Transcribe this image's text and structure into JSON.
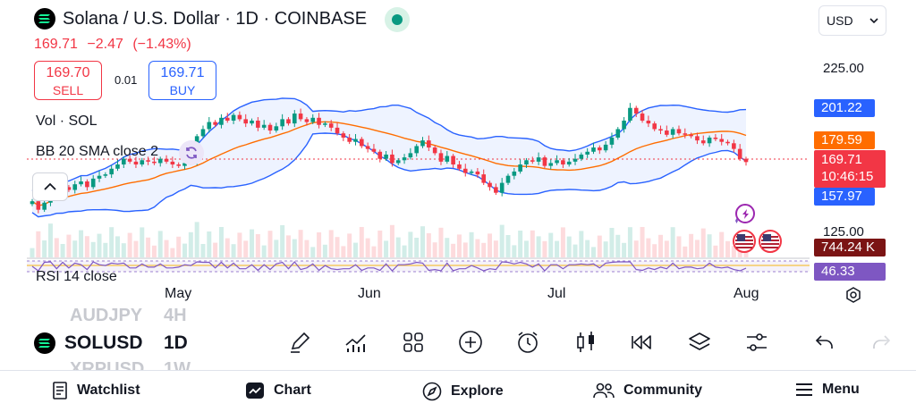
{
  "header": {
    "title": "Solana / U.S. Dollar · 1D · COINBASE",
    "price": "169.71",
    "change": "−2.47",
    "change_pct": "(−1.43%)"
  },
  "trade": {
    "sell_value": "169.70",
    "sell_label": "SELL",
    "spread": "0.01",
    "buy_value": "169.71",
    "buy_label": "BUY"
  },
  "indicators": {
    "volume": "Vol · SOL",
    "bollinger": "BB 20 SMA close 2",
    "rsi": "RSI 14 close"
  },
  "currency": {
    "selected": "USD"
  },
  "price_axis": {
    "tick_225": "225.00",
    "tick_125": "125.00",
    "bb_upper": "201.22",
    "bb_basis": "179.59",
    "last_price": "169.71",
    "countdown": "10:46:15",
    "bb_lower": "157.97",
    "volume": "744.24 K",
    "rsi": "46.33"
  },
  "time_axis": {
    "m1": "May",
    "m2": "Jun",
    "m3": "Jul",
    "m4": "Aug"
  },
  "toolbar": {
    "symbol": "SOLUSD",
    "timeframe": "1D",
    "ghost_symbol_above": "AUDJPY",
    "ghost_tf_above": "4H",
    "ghost_symbol_below": "XRPUSD",
    "ghost_tf_below": "1W",
    "tools": [
      "pencil-icon",
      "chart-line-icon",
      "grid-icon",
      "plus-circle-icon",
      "alarm-icon",
      "candles-icon",
      "replay-icon",
      "layers-icon",
      "sliders-icon",
      "undo-icon",
      "redo-icon"
    ]
  },
  "nav": {
    "watchlist": "Watchlist",
    "chart": "Chart",
    "explore": "Explore",
    "community": "Community",
    "menu": "Menu"
  },
  "colors": {
    "up": "#089981",
    "down": "#f23645",
    "bb_band": "#2962ff",
    "bb_basis": "#ff6d00",
    "rsi": "#7e57c2"
  },
  "chart_data": {
    "type": "candlestick",
    "symbol": "SOLUSD",
    "interval": "1D",
    "y_range": [
      120,
      235
    ],
    "months": [
      "May",
      "Jun",
      "Jul",
      "Aug"
    ],
    "candles": [
      [
        140,
        142
      ],
      [
        142,
        136
      ],
      [
        136,
        141
      ],
      [
        141,
        150
      ],
      [
        150,
        147
      ],
      [
        147,
        152
      ],
      [
        152,
        150
      ],
      [
        150,
        154
      ],
      [
        154,
        156
      ],
      [
        156,
        152
      ],
      [
        152,
        158
      ],
      [
        158,
        160
      ],
      [
        160,
        161
      ],
      [
        161,
        165
      ],
      [
        165,
        168
      ],
      [
        168,
        172
      ],
      [
        172,
        170
      ],
      [
        170,
        168
      ],
      [
        168,
        171
      ],
      [
        171,
        170
      ],
      [
        170,
        169
      ],
      [
        169,
        172
      ],
      [
        172,
        170
      ],
      [
        170,
        168
      ],
      [
        168,
        167
      ],
      [
        167,
        169
      ],
      [
        169,
        170
      ],
      [
        170,
        188
      ],
      [
        188,
        193
      ],
      [
        193,
        198
      ],
      [
        198,
        196
      ],
      [
        196,
        201
      ],
      [
        201,
        199
      ],
      [
        199,
        203
      ],
      [
        203,
        200
      ],
      [
        200,
        197
      ],
      [
        197,
        199
      ],
      [
        199,
        194
      ],
      [
        194,
        196
      ],
      [
        196,
        192
      ],
      [
        192,
        195
      ],
      [
        195,
        200
      ],
      [
        200,
        197
      ],
      [
        197,
        204
      ],
      [
        204,
        200
      ],
      [
        200,
        198
      ],
      [
        198,
        201
      ],
      [
        201,
        196
      ],
      [
        196,
        197
      ],
      [
        197,
        194
      ],
      [
        194,
        190
      ],
      [
        190,
        187
      ],
      [
        187,
        184
      ],
      [
        184,
        186
      ],
      [
        186,
        181
      ],
      [
        181,
        179
      ],
      [
        179,
        177
      ],
      [
        177,
        172
      ],
      [
        172,
        175
      ],
      [
        175,
        169
      ],
      [
        169,
        171
      ],
      [
        171,
        173
      ],
      [
        173,
        176
      ],
      [
        176,
        181
      ],
      [
        181,
        185
      ],
      [
        185,
        180
      ],
      [
        180,
        176
      ],
      [
        176,
        170
      ],
      [
        170,
        174
      ],
      [
        174,
        168
      ],
      [
        168,
        165
      ],
      [
        165,
        162
      ],
      [
        162,
        163
      ],
      [
        163,
        161
      ],
      [
        161,
        155
      ],
      [
        155,
        152
      ],
      [
        152,
        148
      ],
      [
        148,
        155
      ],
      [
        155,
        160
      ],
      [
        160,
        163
      ],
      [
        163,
        168
      ],
      [
        168,
        171
      ],
      [
        171,
        170
      ],
      [
        170,
        173
      ],
      [
        173,
        167
      ],
      [
        167,
        169
      ],
      [
        169,
        171
      ],
      [
        171,
        168
      ],
      [
        168,
        170
      ],
      [
        170,
        172
      ],
      [
        172,
        175
      ],
      [
        175,
        177
      ],
      [
        177,
        180
      ],
      [
        180,
        178
      ],
      [
        178,
        182
      ],
      [
        182,
        187
      ],
      [
        187,
        193
      ],
      [
        193,
        199
      ],
      [
        199,
        208
      ],
      [
        208,
        204
      ],
      [
        204,
        199
      ],
      [
        199,
        197
      ],
      [
        197,
        193
      ],
      [
        193,
        192
      ],
      [
        192,
        189
      ],
      [
        189,
        193
      ],
      [
        193,
        190
      ],
      [
        190,
        189
      ],
      [
        189,
        188
      ],
      [
        188,
        185
      ],
      [
        185,
        183
      ],
      [
        183,
        187
      ],
      [
        187,
        186
      ],
      [
        186,
        184
      ],
      [
        184,
        183
      ],
      [
        183,
        179
      ],
      [
        179,
        172
      ],
      [
        172,
        169.71
      ]
    ],
    "last": 169.71,
    "bb_upper_last": 201.22,
    "bb_basis_last": 179.59,
    "bb_lower_last": 157.97,
    "volume_last": "744.24 K",
    "rsi_last": 46.33
  }
}
